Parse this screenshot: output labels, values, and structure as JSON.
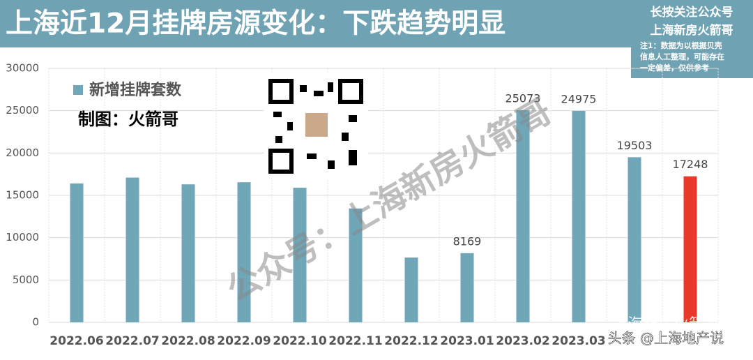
{
  "chart_data": {
    "type": "bar",
    "title": "上海近12月挂牌房源变化：下跌趋势明显",
    "side_title": [
      "长按关注公众号",
      "上海新房火箭哥"
    ],
    "note": [
      "注1：数据为以根据贝壳",
      "信息人工整理，可能存在",
      "一定偏差，仅供参考"
    ],
    "credit": "制图：火箭哥",
    "watermark": "公众号：上海新房火箭哥",
    "footer_marks": [
      "上海新房火箭哥",
      "头条 @上海地产说"
    ],
    "categories": [
      "2022.06",
      "2022.07",
      "2022.08",
      "2022.09",
      "2022.10",
      "2022.11",
      "2022.12",
      "2023.01",
      "2023.02",
      "2023.03",
      null,
      null
    ],
    "series": [
      {
        "name": "新增挂牌套数",
        "colors": [
          "#6fa6b8",
          "#6fa6b8",
          "#6fa6b8",
          "#6fa6b8",
          "#6fa6b8",
          "#6fa6b8",
          "#6fa6b8",
          "#6fa6b8",
          "#6fa6b8",
          "#6fa6b8",
          "#6fa6b8",
          "#e8392a"
        ],
        "values": [
          16400,
          17100,
          16300,
          16550,
          15900,
          13450,
          7650,
          8169,
          25073,
          24975,
          19503,
          17248
        ],
        "value_labels": [
          null,
          null,
          null,
          null,
          null,
          null,
          null,
          "8169",
          "25073",
          "24975",
          "19503",
          "17248"
        ]
      }
    ],
    "ylim": [
      0,
      30000
    ],
    "yticks": [
      0,
      5000,
      10000,
      15000,
      20000,
      25000,
      30000
    ],
    "grid": true
  }
}
